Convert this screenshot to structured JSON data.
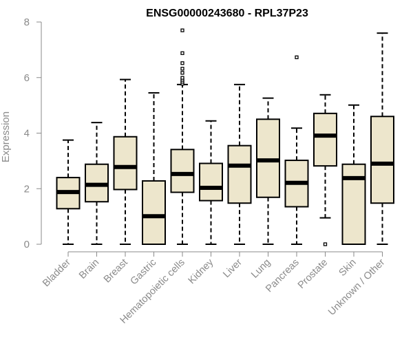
{
  "chart_data": {
    "type": "boxplot",
    "title": "ENSG00000243680 - RPL37P23",
    "xlabel": "",
    "ylabel": "Expression",
    "ylim": [
      0,
      8
    ],
    "yticks": [
      0,
      2,
      4,
      6,
      8
    ],
    "grid": false,
    "legend": "none",
    "colors": {
      "box_fill": "#ede6cc",
      "box_stroke": "#000000",
      "axis": "#8a8a8a",
      "text": "#8a8a8a"
    },
    "categories": [
      "Bladder",
      "Brain",
      "Breast",
      "Gastric",
      "Hematopoietic cells",
      "Kidney",
      "Liver",
      "Lung",
      "Pancreas",
      "Prostate",
      "Skin",
      "Unknown / Other"
    ],
    "boxes": [
      {
        "category": "Bladder",
        "min": 0,
        "q1": 1.28,
        "median": 1.88,
        "q3": 2.4,
        "max": 3.75,
        "outliers": []
      },
      {
        "category": "Brain",
        "min": 0,
        "q1": 1.53,
        "median": 2.14,
        "q3": 2.88,
        "max": 4.38,
        "outliers": []
      },
      {
        "category": "Breast",
        "min": 0,
        "q1": 1.97,
        "median": 2.78,
        "q3": 3.87,
        "max": 5.93,
        "outliers": []
      },
      {
        "category": "Gastric",
        "min": 0,
        "q1": 0,
        "median": 1.01,
        "q3": 2.28,
        "max": 5.45,
        "outliers": []
      },
      {
        "category": "Hematopoietic cells",
        "min": 0,
        "q1": 1.87,
        "median": 2.53,
        "q3": 3.41,
        "max": 5.75,
        "outliers": [
          5.78,
          5.85,
          5.92,
          5.99,
          6.17,
          6.32,
          6.52,
          6.88,
          7.7
        ]
      },
      {
        "category": "Kidney",
        "min": 0,
        "q1": 1.57,
        "median": 2.03,
        "q3": 2.91,
        "max": 4.44,
        "outliers": []
      },
      {
        "category": "Liver",
        "min": 0,
        "q1": 1.48,
        "median": 2.83,
        "q3": 3.55,
        "max": 5.75,
        "outliers": []
      },
      {
        "category": "Lung",
        "min": 0,
        "q1": 1.69,
        "median": 3.02,
        "q3": 4.5,
        "max": 5.26,
        "outliers": []
      },
      {
        "category": "Pancreas",
        "min": 0,
        "q1": 1.35,
        "median": 2.21,
        "q3": 3.02,
        "max": 4.18,
        "outliers": [
          6.73
        ]
      },
      {
        "category": "Prostate",
        "min": 0.95,
        "q1": 2.82,
        "median": 3.91,
        "q3": 4.71,
        "max": 5.38,
        "outliers": [
          0
        ]
      },
      {
        "category": "Skin",
        "min": 0,
        "q1": 0,
        "median": 2.38,
        "q3": 2.88,
        "max": 5.01,
        "outliers": []
      },
      {
        "category": "Unknown / Other",
        "min": 0,
        "q1": 1.48,
        "median": 2.9,
        "q3": 4.6,
        "max": 7.6,
        "outliers": []
      }
    ]
  }
}
